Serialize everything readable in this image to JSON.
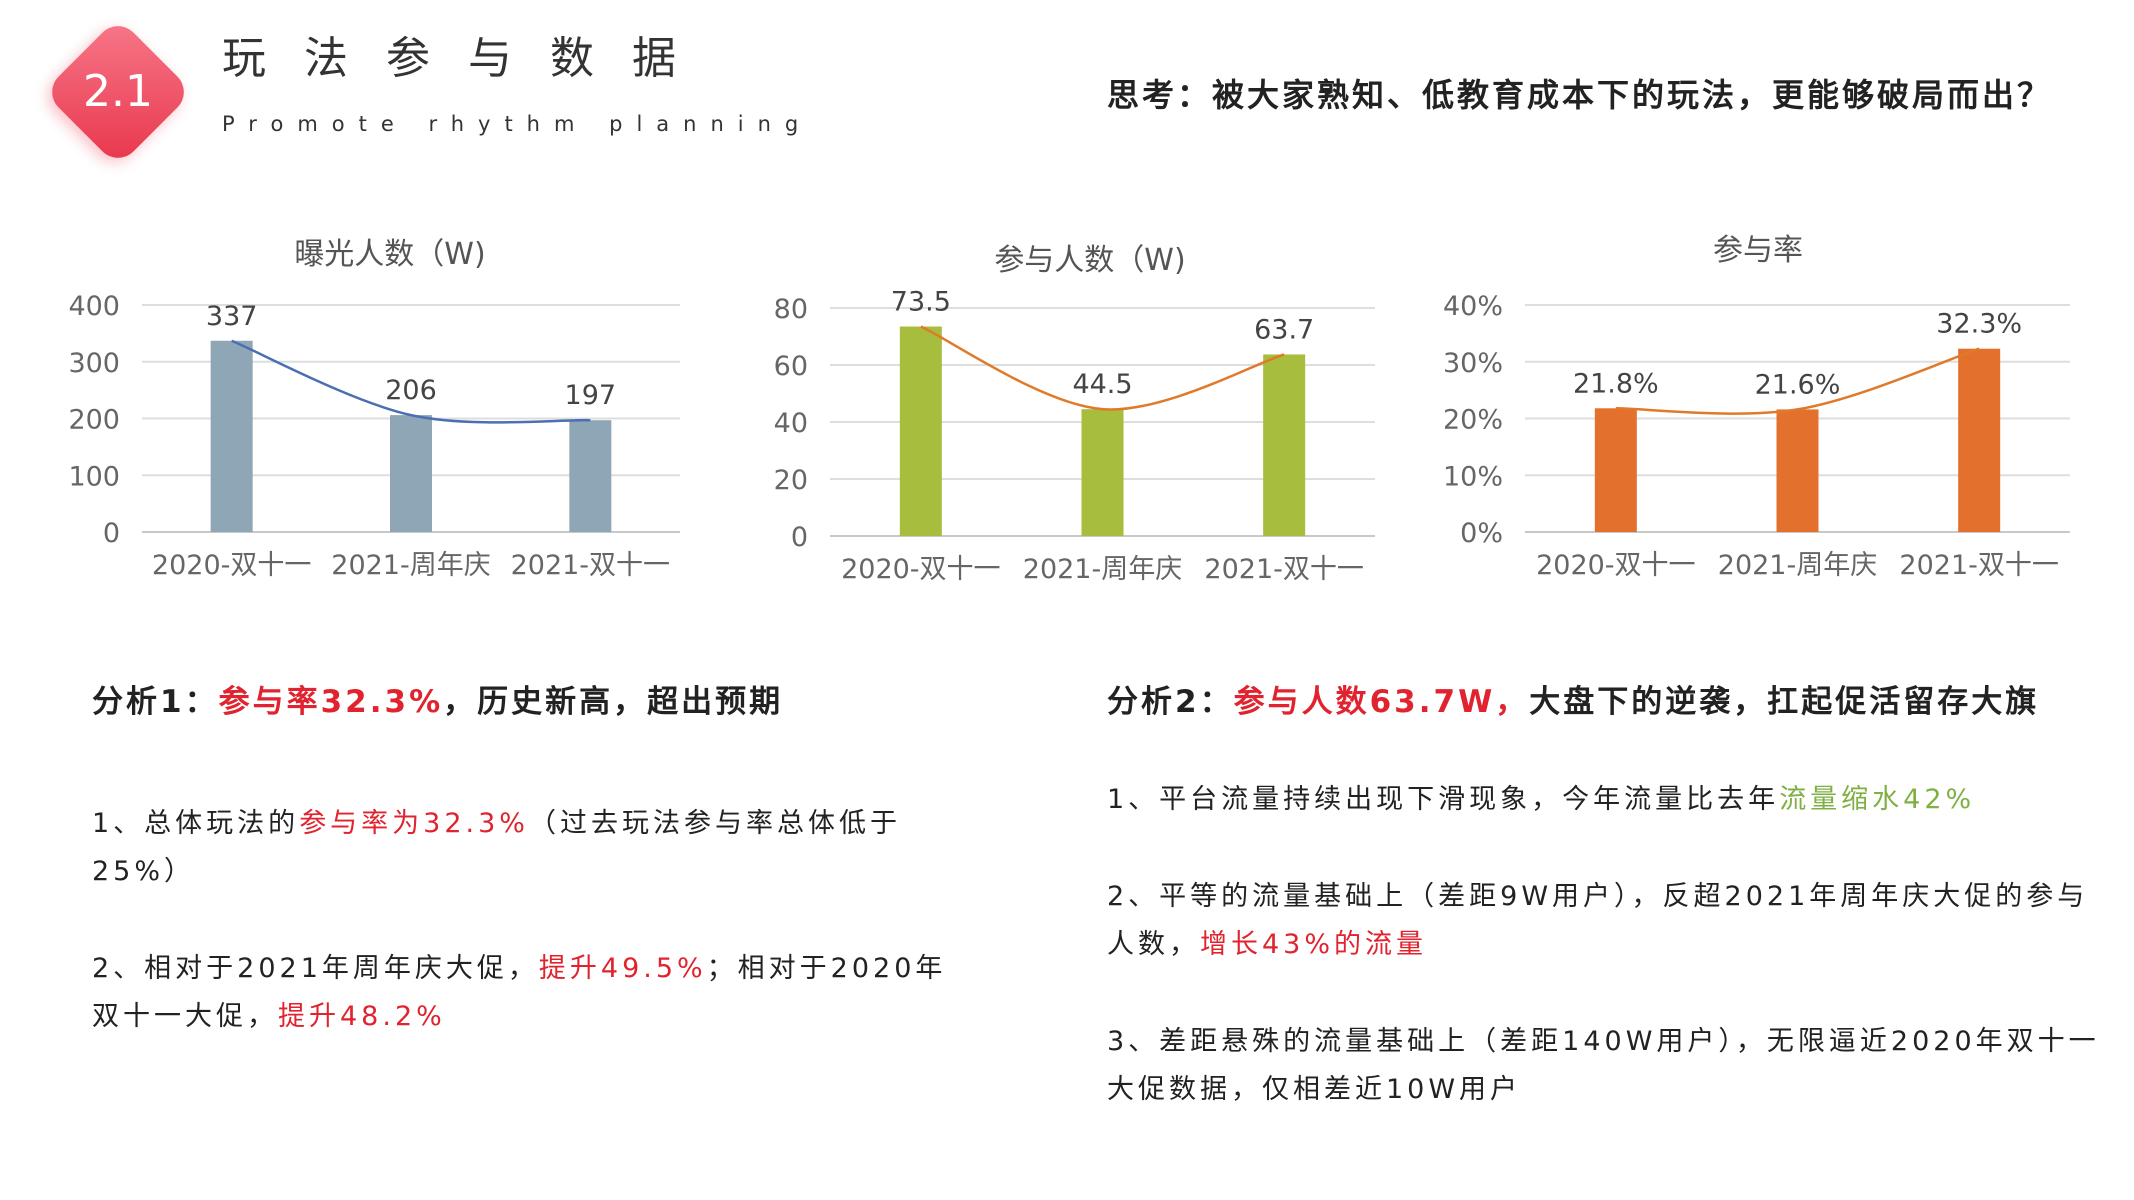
{
  "header": {
    "badge": "2.1",
    "title": "玩法参与数据",
    "subtitle": "Promote rhythm planning",
    "thinking": "思考：被大家熟知、低教育成本下的玩法，更能够破局而出？"
  },
  "colors": {
    "badge": "#e8354b",
    "highlight_red": "#e0232e",
    "highlight_green": "#7fb043",
    "exposure_bar": "#8fa6b6",
    "exposure_trend": "#4a6fb2",
    "participants_bar": "#a6bd3d",
    "participants_trend": "#e07a2a",
    "rate_bar": "#e4702d",
    "rate_trend": "#e07a2a"
  },
  "chart_data": [
    {
      "type": "bar",
      "title": "曝光人数（W)",
      "categories": [
        "2020-双十一",
        "2021-周年庆",
        "2021-双十一"
      ],
      "values": [
        337,
        206,
        197
      ],
      "value_labels": [
        "337",
        "206",
        "197"
      ],
      "ylim": [
        0,
        400
      ],
      "yticks": [
        "0",
        "100",
        "200",
        "300",
        "400"
      ],
      "trendline": "curve through bars",
      "grid": true
    },
    {
      "type": "bar",
      "title": "参与人数（W)",
      "categories": [
        "2020-双十一",
        "2021-周年庆",
        "2021-双十一"
      ],
      "values": [
        73.5,
        44.5,
        63.7
      ],
      "value_labels": [
        "73.5",
        "44.5",
        "63.7"
      ],
      "ylim": [
        0,
        80
      ],
      "yticks": [
        "0",
        "20",
        "40",
        "60",
        "80"
      ],
      "trendline": "curve through bars",
      "grid": true
    },
    {
      "type": "bar",
      "title": "参与率",
      "categories": [
        "2020-双十一",
        "2021-周年庆",
        "2021-双十一"
      ],
      "values": [
        21.8,
        21.6,
        32.3
      ],
      "value_labels": [
        "21.8%",
        "21.6%",
        "32.3%"
      ],
      "ylim": [
        0,
        40
      ],
      "yticks": [
        "0%",
        "10%",
        "20%",
        "30%",
        "40%"
      ],
      "trendline": "curve through bars",
      "grid": true
    }
  ],
  "analysis1": {
    "heading_prefix": "分析1：",
    "heading_highlight": "参与率32.3%",
    "heading_suffix": "，历史新高，超出预期",
    "p1_prefix": "1、总体玩法的",
    "p1_highlight": "参与率为32.3%",
    "p1_suffix": "（过去玩法参与率总体低于25%）",
    "p2_prefix": "2、相对于2021年周年庆大促，",
    "p2_highlight1": "提升49.5%",
    "p2_middle": "；相对于2020年双十一大促，",
    "p2_highlight2": "提升48.2%"
  },
  "analysis2": {
    "heading_prefix": "分析2：",
    "heading_highlight": "参与人数63.7W，",
    "heading_suffix": "大盘下的逆袭，扛起促活留存大旗",
    "p1_prefix": "1、平台流量持续出现下滑现象，今年流量比去年",
    "p1_highlight": "流量缩水42%",
    "p2_prefix": "2、平等的流量基础上（差距9W用户），反超2021年周年庆大促的参与人数，",
    "p2_highlight": "增长43%的流量",
    "p3": "3、差距悬殊的流量基础上（差距140W用户），无限逼近2020年双十一大促数据，仅相差近10W用户"
  }
}
